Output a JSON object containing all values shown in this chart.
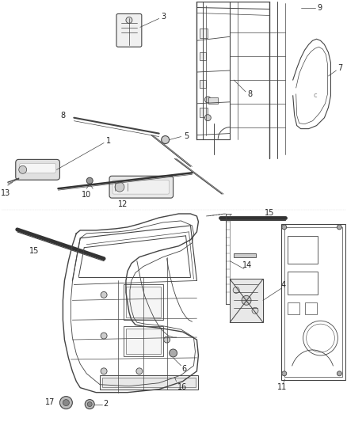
{
  "background_color": "#ffffff",
  "line_color": "#444444",
  "label_color": "#222222",
  "figsize": [
    4.38,
    5.33
  ],
  "dpi": 100
}
